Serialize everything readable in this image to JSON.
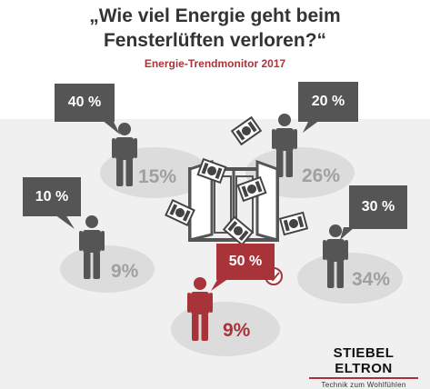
{
  "title_line1": "„Wie viel Energie geht beim",
  "title_line2": "Fensterlüften verloren?“",
  "subtitle": "Energie-Trendmonitor 2017",
  "answers": [
    {
      "answer": "40 %",
      "share": "15%"
    },
    {
      "answer": "20 %",
      "share": "26%"
    },
    {
      "answer": "10 %",
      "share": "9%"
    },
    {
      "answer": "30 %",
      "share": "34%"
    },
    {
      "answer": "50 %",
      "share": "9%",
      "correct": true
    }
  ],
  "logo": {
    "brand": "STIEBEL ELTRON",
    "tagline": "Technik zum Wohlfühlen"
  },
  "colors": {
    "accent": "#a8343a",
    "dark": "#555555",
    "ellipse": "#dcdcdc",
    "background": "#f0f0f0"
  },
  "icons": [
    "person-icon",
    "window-icon",
    "money-bill-icon",
    "checkmark-icon"
  ]
}
